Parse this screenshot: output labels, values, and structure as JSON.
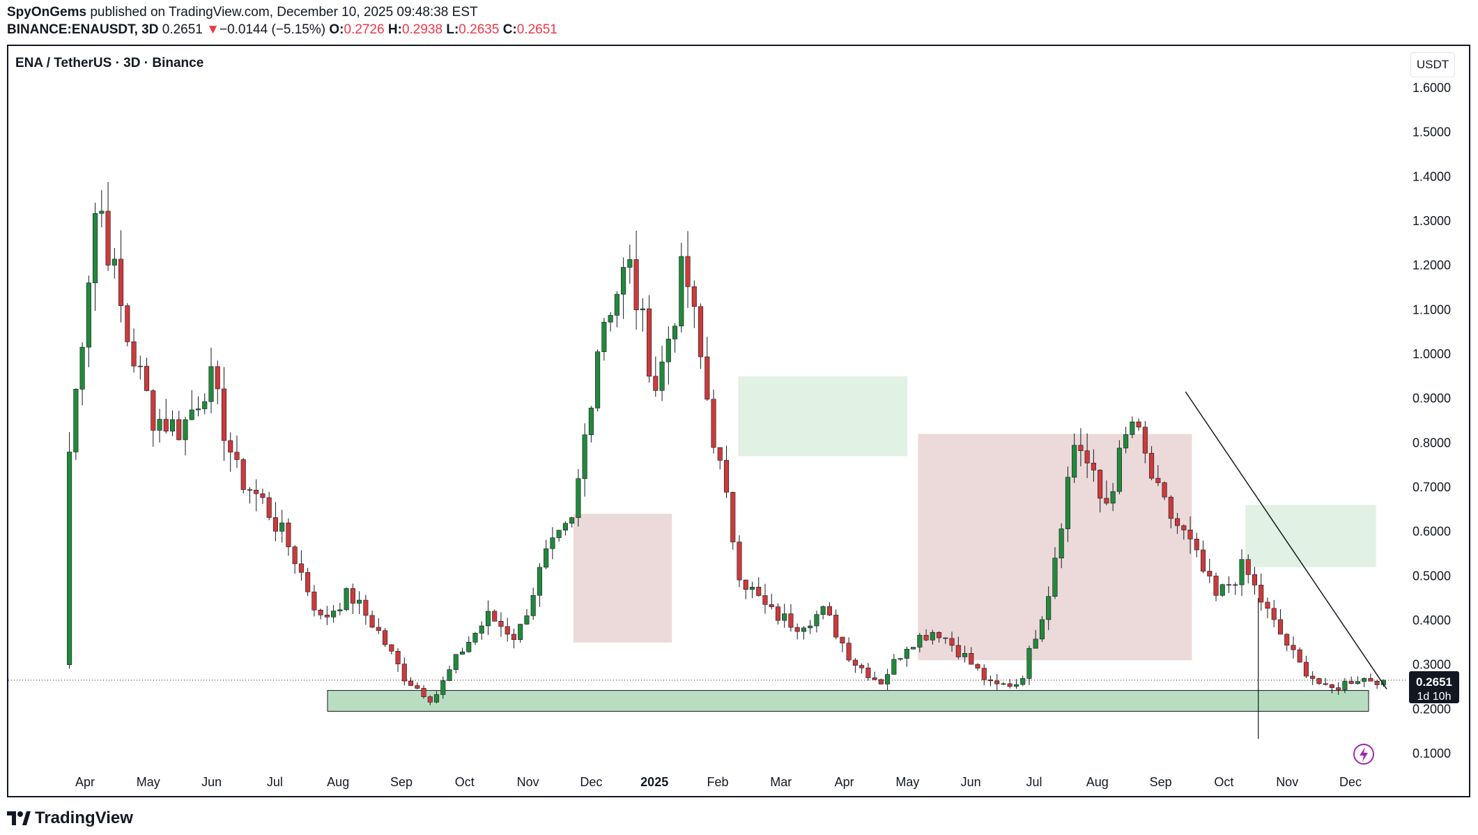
{
  "header": {
    "author": "SpyOnGems",
    "published": "published on TradingView.com, December 10, 2025 09:48:38 EST",
    "symbol_line": "BINANCE:ENAUSDT, 3D",
    "last": "0.2651",
    "change_arrow": "▼",
    "change": "−0.0144 (−5.15%)",
    "o_label": "O:",
    "o": "0.2726",
    "h_label": "H:",
    "h": "0.2938",
    "l_label": "L:",
    "l": "0.2635",
    "c_label": "C:",
    "c": "0.2651"
  },
  "chart_title": "ENA / TetherUS · 3D · Binance",
  "currency": "USDT",
  "brand": "TradingView",
  "price_tag": {
    "price": "0.2651",
    "countdown": "1d 10h"
  },
  "colors": {
    "up": "#22893b",
    "down": "#cc3a3a",
    "cloud_bear": "#e9d3d3",
    "cloud_bull": "#dcefdf",
    "zone": "#a8d5b0"
  },
  "chart_data": {
    "type": "candlestick",
    "title": "ENA / TetherUS · 3D · Binance",
    "ylim": [
      0.05,
      1.65
    ],
    "y_ticks": [
      "1.6000",
      "1.5000",
      "1.4000",
      "1.3000",
      "1.2000",
      "1.1000",
      "1.0000",
      "0.9000",
      "0.8000",
      "0.7000",
      "0.6000",
      "0.5000",
      "0.4000",
      "0.3000",
      "0.2000",
      "0.1000"
    ],
    "x_ticks": [
      "Apr",
      "May",
      "Jun",
      "Jul",
      "Aug",
      "Sep",
      "Oct",
      "Nov",
      "Dec",
      "2025",
      "Feb",
      "Mar",
      "Apr",
      "May",
      "Jun",
      "Jul",
      "Aug",
      "Sep",
      "Oct",
      "Nov",
      "Dec"
    ],
    "period_start": "2024-04-02",
    "period_end": "2025-12-10",
    "close_anchors": [
      0.78,
      1.37,
      1.05,
      0.86,
      0.83,
      0.95,
      0.73,
      0.66,
      0.55,
      0.4,
      0.46,
      0.38,
      0.27,
      0.22,
      0.33,
      0.41,
      0.36,
      0.54,
      0.62,
      1.07,
      1.2,
      0.92,
      1.2,
      0.83,
      0.5,
      0.42,
      0.39,
      0.42,
      0.31,
      0.26,
      0.35,
      0.38,
      0.32,
      0.25,
      0.26,
      0.46,
      0.82,
      0.65,
      0.85,
      0.67,
      0.58,
      0.45,
      0.52,
      0.4,
      0.3,
      0.24,
      0.27,
      0.2651
    ],
    "support_zone": [
      0.195,
      0.242
    ],
    "trendline": [
      [
        "2025-09-07",
        0.915
      ],
      [
        "2025-12-10",
        0.245
      ]
    ],
    "wick_low": {
      "date": "2025-10-11",
      "value": 0.133
    },
    "cloud": [
      {
        "from": "2024-11-25",
        "to": "2025-01-10",
        "top": 0.64,
        "bottom": 0.35,
        "sentiment": "bearish"
      },
      {
        "from": "2025-02-10",
        "to": "2025-04-30",
        "top": 0.95,
        "bottom": 0.77,
        "sentiment": "bullish"
      },
      {
        "from": "2025-05-05",
        "to": "2025-09-10",
        "top": 0.82,
        "bottom": 0.31,
        "sentiment": "bearish"
      },
      {
        "from": "2025-10-05",
        "to": "2025-12-05",
        "top": 0.66,
        "bottom": 0.52,
        "sentiment": "bullish"
      }
    ],
    "last_price": 0.2651
  }
}
